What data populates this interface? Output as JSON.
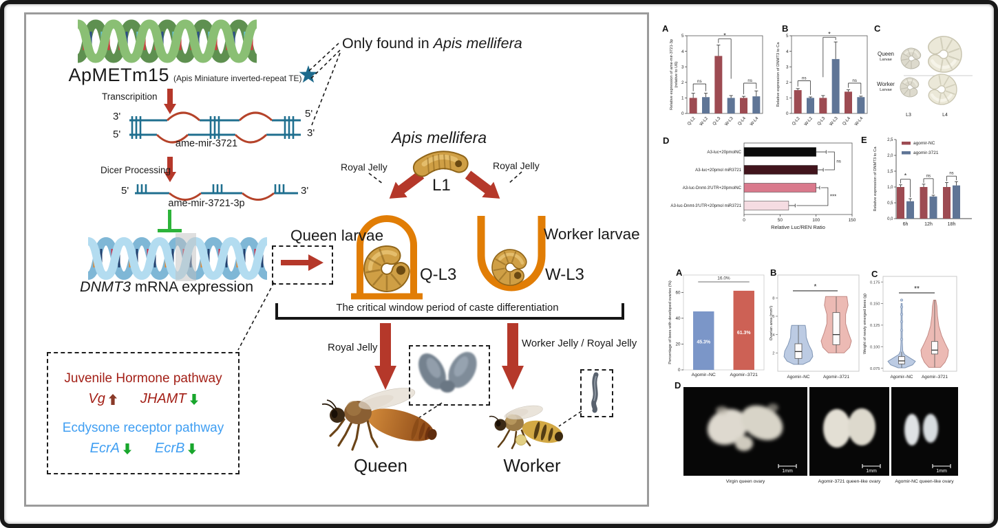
{
  "diagram": {
    "te_name": "ApMETm15",
    "te_desc": "(Apis Miniature inverted-repeat TE)",
    "only_found_prefix": "Only found in ",
    "only_found_species": "Apis mellifera",
    "transcription_label": "Transcripition",
    "pre_mirna_label": "ame-mir-3721",
    "dicer_label": "Dicer Processing",
    "mature_mirna_label": "ame-mir-3721-3p",
    "dnmt3_gene": "DNMT3",
    "dnmt3_rest": " mRNA expression",
    "primes": {
      "three": "3'",
      "five": "5'"
    },
    "species_title": "Apis mellifera",
    "l1_label": "L1",
    "royal_jelly": "Royal Jelly",
    "worker_jelly": "Worker Jelly / Royal Jelly",
    "queen_larvae_label": "Queen larvae",
    "worker_larvae_label": "Worker larvae",
    "q_l3_label": "Q-L3",
    "w_l3_label": "W-L3",
    "critical_window_label": "The critical window period of caste differentiation",
    "queen_label": "Queen",
    "worker_label": "Worker",
    "pathway_box": {
      "jh_title": "Juvenile Hormone pathway",
      "vg_gene": "Vg",
      "jhamt_gene": "JHAMT",
      "ecd_title": "Ecdysone receptor pathway",
      "ecra_gene": "EcrA",
      "ecrb_gene": "EcrB"
    }
  },
  "figure_top": {
    "panel_labels": {
      "a": "A",
      "b": "B",
      "c": "C",
      "d": "D",
      "e": "E"
    },
    "panel_c": {
      "row1_title": "Queen",
      "row1_sub": "Larvae",
      "row2_title": "Worker",
      "row2_sub": "Larvae",
      "col1": "L3",
      "col2": "L4"
    }
  },
  "figure_bottom": {
    "panel_labels": {
      "a": "A",
      "b": "B",
      "c": "C",
      "d": "D"
    },
    "photo_captions": [
      "Virgin queen ovary",
      "Agomir-3721 queen-like ovary",
      "Agomir-NC queen-like ovary"
    ],
    "scale_bar": "1mm"
  },
  "chart_data": [
    {
      "id": "top_A",
      "type": "bar",
      "ylabel": "Relative expression of  ame-mir-3721-3p",
      "ylabel2": "(relative to U6)",
      "categories": [
        "Q-L2",
        "W-L2",
        "Q-L3",
        "W-L3",
        "Q-L4",
        "W-L4"
      ],
      "values": [
        1.0,
        1.05,
        3.7,
        1.0,
        1.0,
        1.1
      ],
      "errors": [
        0.3,
        0.25,
        0.7,
        0.15,
        0.1,
        0.35
      ],
      "colors": [
        "#9d4b52",
        "#5f7596",
        "#9d4b52",
        "#5f7596",
        "#9d4b52",
        "#5f7596"
      ],
      "ylim": [
        0,
        5
      ],
      "yticks": [
        0,
        1,
        2,
        3,
        4,
        5
      ],
      "significance": [
        {
          "pair": [
            0,
            1
          ],
          "label": "ns",
          "y": 1.9
        },
        {
          "pair": [
            2,
            3
          ],
          "label": "*",
          "y": 4.8
        },
        {
          "pair": [
            4,
            5
          ],
          "label": "ns",
          "y": 1.95
        }
      ]
    },
    {
      "id": "top_B",
      "type": "bar",
      "ylabel": "Relative expression of DNMT3 to Ca",
      "categories": [
        "Q-L2",
        "W-L2",
        "Q-L3",
        "W-L3",
        "Q-L4",
        "W-L4"
      ],
      "values": [
        1.5,
        1.0,
        1.0,
        3.5,
        1.4,
        1.05
      ],
      "errors": [
        0.1,
        0.06,
        0.15,
        1.1,
        0.12,
        0.06
      ],
      "colors": [
        "#9d4b52",
        "#5f7596",
        "#9d4b52",
        "#5f7596",
        "#9d4b52",
        "#5f7596"
      ],
      "ylim": [
        0,
        5
      ],
      "yticks": [
        0,
        1,
        2,
        3,
        4,
        5
      ],
      "significance": [
        {
          "pair": [
            0,
            1
          ],
          "label": "ns",
          "y": 2.1
        },
        {
          "pair": [
            2,
            3
          ],
          "label": "*",
          "y": 4.9
        },
        {
          "pair": [
            4,
            5
          ],
          "label": "ns",
          "y": 1.95
        }
      ]
    },
    {
      "id": "top_D",
      "type": "hbar",
      "xlabel": "Relative Luc/REN Ratio",
      "categories": [
        "A3-luc+20pmolNC",
        "A3-luc+20pmol miR3721",
        "A3-luc-Dnmt-3'UTR+20pmolNC",
        "A3-luc-Dnmt-3'UTR+20pmol miR3721"
      ],
      "values": [
        100,
        102,
        100,
        62
      ],
      "errors": [
        14,
        8,
        5,
        9
      ],
      "colors": [
        "#0b0b0b",
        "#41141c",
        "#d9798c",
        "#f5dce2"
      ],
      "xlim": [
        0,
        150
      ],
      "xticks": [
        0,
        50,
        100,
        150
      ],
      "significance": [
        {
          "pair": [
            0,
            1
          ],
          "label": "ns"
        },
        {
          "pair": [
            2,
            3
          ],
          "label": "***"
        }
      ]
    },
    {
      "id": "top_E",
      "type": "grouped_bar",
      "ylabel": "Relative expression of DNMT3 to Ca",
      "categories": [
        "6h",
        "12h",
        "18h"
      ],
      "series": [
        {
          "name": "agomir-NC",
          "color": "#9d4b52",
          "values": [
            1.0,
            1.0,
            1.0
          ],
          "errors": [
            0.07,
            0.09,
            0.14
          ]
        },
        {
          "name": "agomir-3721",
          "color": "#5f7596",
          "values": [
            0.55,
            0.7,
            1.05
          ],
          "errors": [
            0.08,
            0.04,
            0.12
          ]
        }
      ],
      "ylim": [
        0,
        2.5
      ],
      "yticks": [
        0,
        0.5,
        1,
        1.5,
        2,
        2.5
      ],
      "ytick_labels": [
        "0,0",
        "0,5",
        "1,0",
        "1,5",
        "2,0",
        "2,5"
      ],
      "significance": [
        {
          "group": 0,
          "label": "*"
        },
        {
          "group": 1,
          "label": "ns"
        },
        {
          "group": 2,
          "label": "ns"
        }
      ]
    },
    {
      "id": "bottom_A",
      "type": "bar",
      "ylabel": "Percentage of bees with developed ovaries (%)",
      "categories": [
        "Agomir–NC",
        "Agomir–3721"
      ],
      "values": [
        45.3,
        61.3
      ],
      "bar_labels": [
        "45.3%",
        "61.3%"
      ],
      "colors": [
        "#7b96c8",
        "#cd6155"
      ],
      "annotation": "16.0%",
      "ylim": [
        0,
        73.5
      ],
      "yticks": [
        0,
        20,
        40,
        60
      ]
    },
    {
      "id": "bottom_B",
      "type": "violin",
      "ylabel": "Ovarian area (mm²)",
      "categories": [
        "Agomir–NC",
        "Agomir–3721"
      ],
      "ylim": [
        0,
        10.5
      ],
      "yticks": [
        2,
        4,
        6,
        8
      ],
      "significance": "*",
      "violins": [
        {
          "name": "Agomir–NC",
          "color": "#bccbe3",
          "stroke": "#8096b5",
          "stats": {
            "min": 0.75,
            "q1": 1.4,
            "median": 2.15,
            "q3": 3.0,
            "max": 5.0
          },
          "profile": [
            [
              0.75,
              0.3
            ],
            [
              1.1,
              0.75
            ],
            [
              1.6,
              0.95
            ],
            [
              2.2,
              0.9
            ],
            [
              2.9,
              0.68
            ],
            [
              3.7,
              0.52
            ],
            [
              4.5,
              0.5
            ],
            [
              5.0,
              0.45
            ]
          ]
        },
        {
          "name": "Agomir–3721",
          "color": "#ecbab4",
          "stroke": "#c28984",
          "stats": {
            "min": 2.0,
            "q1": 2.9,
            "median": 4.0,
            "q3": 6.4,
            "max": 8.15
          },
          "profile": [
            [
              2.0,
              0.52
            ],
            [
              2.6,
              0.88
            ],
            [
              3.3,
              1.0
            ],
            [
              4.2,
              0.8
            ],
            [
              5.2,
              0.62
            ],
            [
              6.2,
              0.62
            ],
            [
              7.2,
              0.78
            ],
            [
              8.15,
              0.7
            ]
          ]
        }
      ]
    },
    {
      "id": "bottom_C",
      "type": "violin",
      "ylabel": "Weight of newly emerged bees (g)",
      "categories": [
        "Agomir–NC",
        "Agomir–3721"
      ],
      "ylim": [
        0.0715,
        0.1815
      ],
      "yticks": [
        0.075,
        0.1,
        0.125,
        0.15,
        0.175
      ],
      "ytick_labels": [
        "0.075",
        "0.100",
        "0.125",
        "0.150",
        "0.175"
      ],
      "significance": "**",
      "violins": [
        {
          "name": "Agomir–NC",
          "color": "#bccbe3",
          "stroke": "#8096b5",
          "stats": {
            "min": 0.0755,
            "q1": 0.08,
            "median": 0.0835,
            "q3": 0.0885,
            "max": 0.094
          },
          "profile": [
            [
              0.0755,
              0.25
            ],
            [
              0.079,
              0.8
            ],
            [
              0.083,
              1.0
            ],
            [
              0.0875,
              0.55
            ],
            [
              0.091,
              0.2
            ],
            [
              0.095,
              0.08
            ],
            [
              0.105,
              0.05
            ],
            [
              0.15,
              0.04
            ]
          ],
          "outliers": [
            0.1085,
            0.119,
            0.129,
            0.1375,
            0.146,
            0.154
          ]
        },
        {
          "name": "Agomir–3721",
          "color": "#ecbab4",
          "stroke": "#c28984",
          "stats": {
            "min": 0.076,
            "q1": 0.0915,
            "median": 0.096,
            "q3": 0.106,
            "max": 0.154
          },
          "profile": [
            [
              0.076,
              0.42
            ],
            [
              0.082,
              0.75
            ],
            [
              0.089,
              0.95
            ],
            [
              0.096,
              1.0
            ],
            [
              0.104,
              0.75
            ],
            [
              0.113,
              0.5
            ],
            [
              0.124,
              0.3
            ],
            [
              0.136,
              0.2
            ],
            [
              0.147,
              0.16
            ],
            [
              0.154,
              0.08
            ]
          ]
        }
      ]
    }
  ]
}
